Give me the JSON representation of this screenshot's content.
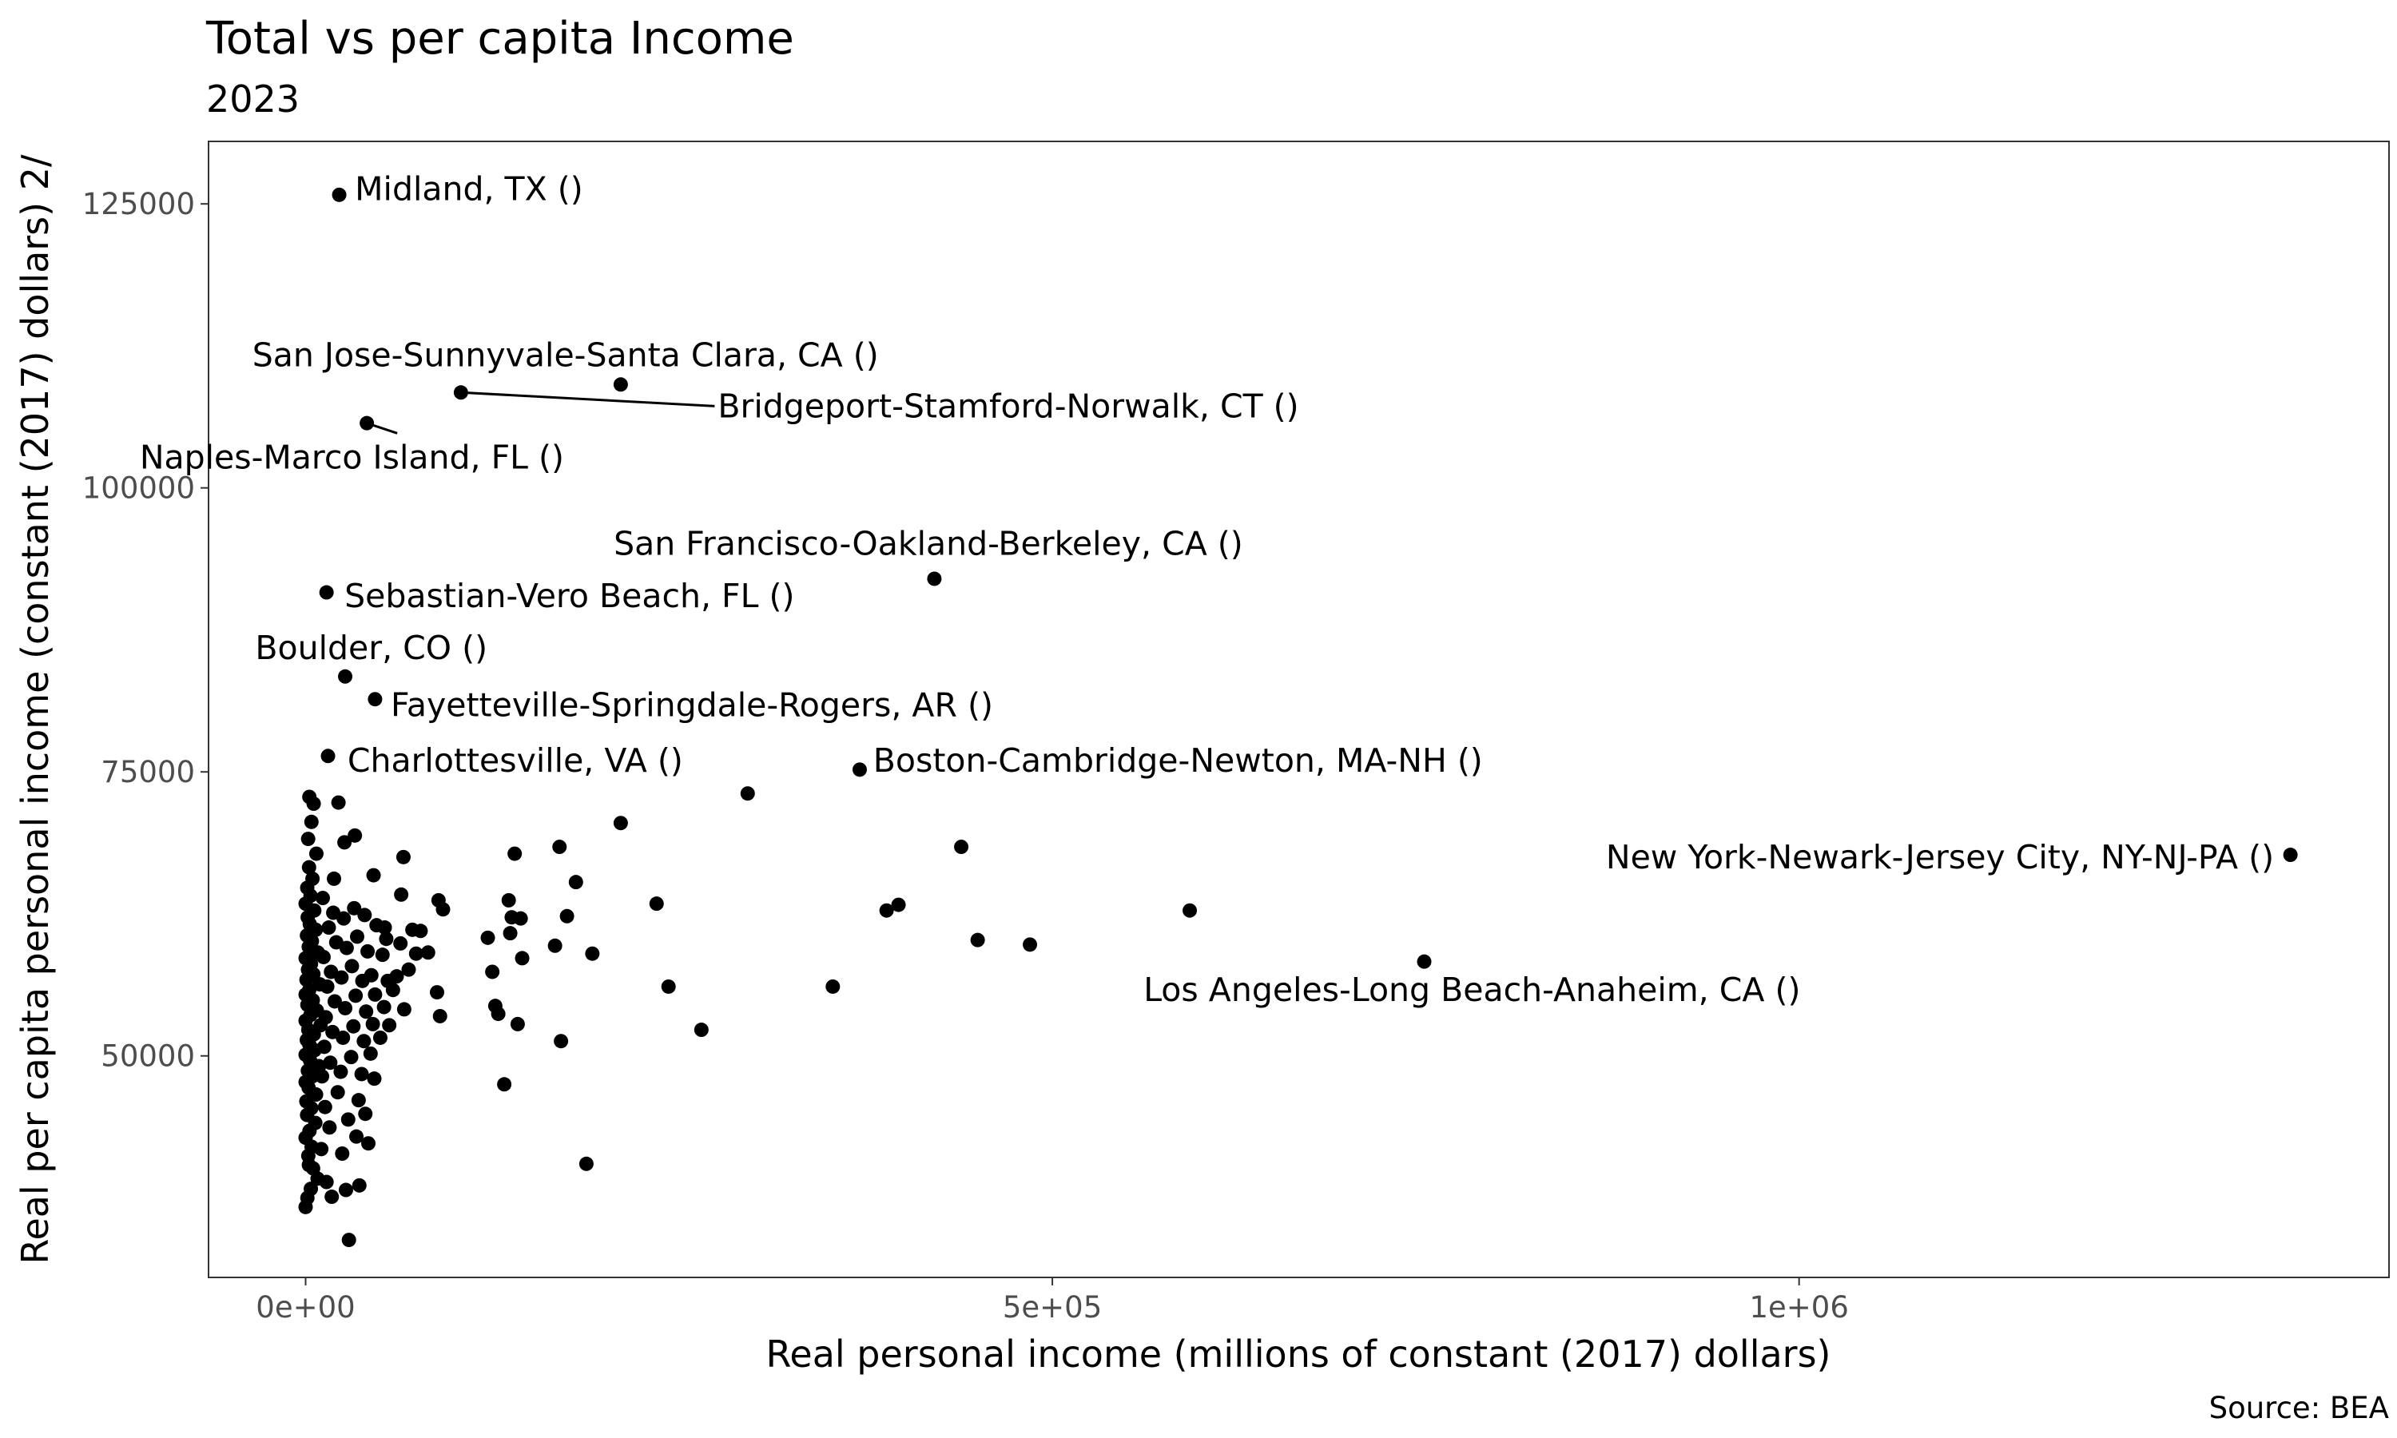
{
  "chart_data": {
    "type": "scatter",
    "title": "Total vs per capita Income",
    "subtitle": "2023",
    "xlabel": "Real personal income (millions of constant (2017) dollars)",
    "ylabel": "Real per capita personal income (constant (2017) dollars) 2/",
    "caption": "Source: BEA",
    "xlim": [
      -65000,
      1395000
    ],
    "ylim": [
      30500,
      130500
    ],
    "x_ticks": [
      {
        "value": 0,
        "label": "0e+00"
      },
      {
        "value": 500000,
        "label": "5e+05"
      },
      {
        "value": 1000000,
        "label": "1e+06"
      }
    ],
    "y_ticks": [
      {
        "value": 50000,
        "label": "50000"
      },
      {
        "value": 75000,
        "label": "75000"
      },
      {
        "value": 100000,
        "label": "100000"
      },
      {
        "value": 125000,
        "label": "125000"
      }
    ],
    "grid": false,
    "labeled_points": [
      {
        "label": "Midland, TX ()",
        "x": 22500,
        "y": 125800,
        "label_x": 33000,
        "label_y": 126300,
        "anchor": "start"
      },
      {
        "label": "San Jose-Sunnyvale-Santa Clara, CA ()",
        "x": 211000,
        "y": 109100,
        "label_x": 174000,
        "label_y": 111700,
        "anchor": "middle"
      },
      {
        "label": "Bridgeport-Stamford-Norwalk, CT ()",
        "x": 104000,
        "y": 108400,
        "label_x": 276000,
        "label_y": 107200,
        "anchor": "start",
        "leader": true
      },
      {
        "label": "Naples-Marco Island, FL ()",
        "x": 41000,
        "y": 105700,
        "label_x": 31000,
        "label_y": 102700,
        "anchor": "middle",
        "leader": true
      },
      {
        "label": "San Francisco-Oakland-Berkeley, CA ()",
        "x": 421000,
        "y": 92000,
        "label_x": 417000,
        "label_y": 95100,
        "anchor": "middle"
      },
      {
        "label": "Sebastian-Vero Beach, FL ()",
        "x": 14000,
        "y": 90800,
        "label_x": 26000,
        "label_y": 90500,
        "anchor": "start"
      },
      {
        "label": "Boulder, CO ()",
        "x": 26500,
        "y": 83400,
        "label_x": 44000,
        "label_y": 85900,
        "anchor": "middle"
      },
      {
        "label": "Fayetteville-Springdale-Rogers, AR ()",
        "x": 46500,
        "y": 81400,
        "label_x": 57000,
        "label_y": 80900,
        "anchor": "start"
      },
      {
        "label": "Charlottesville, VA ()",
        "x": 15000,
        "y": 76400,
        "label_x": 28000,
        "label_y": 76000,
        "anchor": "start"
      },
      {
        "label": "Boston-Cambridge-Newton, MA-NH ()",
        "x": 371000,
        "y": 75200,
        "label_x": 380000,
        "label_y": 76000,
        "anchor": "start"
      },
      {
        "label": "New York-Newark-Jersey City, NY-NJ-PA ()",
        "x": 1329000,
        "y": 67700,
        "label_x": 1318000,
        "label_y": 67500,
        "anchor": "end"
      },
      {
        "label": "Los Angeles-Long Beach-Anaheim, CA ()",
        "x": 749000,
        "y": 58300,
        "label_x": 781000,
        "label_y": 55800,
        "anchor": "middle"
      }
    ],
    "points": [
      {
        "x": 0,
        "y": 36700
      },
      {
        "x": 1200,
        "y": 37500
      },
      {
        "x": 3500,
        "y": 38300
      },
      {
        "x": 5000,
        "y": 40100
      },
      {
        "x": 2200,
        "y": 40400
      },
      {
        "x": 8000,
        "y": 39200
      },
      {
        "x": 1800,
        "y": 41200
      },
      {
        "x": 4000,
        "y": 42000
      },
      {
        "x": 0,
        "y": 42800
      },
      {
        "x": 2600,
        "y": 43400
      },
      {
        "x": 6500,
        "y": 44100
      },
      {
        "x": 1000,
        "y": 44800
      },
      {
        "x": 3800,
        "y": 45400
      },
      {
        "x": 500,
        "y": 46000
      },
      {
        "x": 7000,
        "y": 46600
      },
      {
        "x": 2000,
        "y": 47200
      },
      {
        "x": 0,
        "y": 47700
      },
      {
        "x": 4500,
        "y": 48200
      },
      {
        "x": 1500,
        "y": 48700
      },
      {
        "x": 9000,
        "y": 49100
      },
      {
        "x": 3000,
        "y": 49600
      },
      {
        "x": 0,
        "y": 50100
      },
      {
        "x": 6000,
        "y": 50500
      },
      {
        "x": 2500,
        "y": 51000
      },
      {
        "x": 800,
        "y": 51400
      },
      {
        "x": 5500,
        "y": 51900
      },
      {
        "x": 1800,
        "y": 52300
      },
      {
        "x": 10000,
        "y": 52700
      },
      {
        "x": 0,
        "y": 53100
      },
      {
        "x": 3200,
        "y": 53600
      },
      {
        "x": 7500,
        "y": 54000
      },
      {
        "x": 1200,
        "y": 54500
      },
      {
        "x": 4800,
        "y": 54900
      },
      {
        "x": 0,
        "y": 55400
      },
      {
        "x": 2400,
        "y": 55800
      },
      {
        "x": 9500,
        "y": 56300
      },
      {
        "x": 600,
        "y": 56700
      },
      {
        "x": 5200,
        "y": 57200
      },
      {
        "x": 1600,
        "y": 57600
      },
      {
        "x": 3600,
        "y": 58100
      },
      {
        "x": 0,
        "y": 58600
      },
      {
        "x": 8200,
        "y": 59100
      },
      {
        "x": 2100,
        "y": 59600
      },
      {
        "x": 4200,
        "y": 60100
      },
      {
        "x": 900,
        "y": 60600
      },
      {
        "x": 6800,
        "y": 61100
      },
      {
        "x": 2800,
        "y": 61600
      },
      {
        "x": 1400,
        "y": 62200
      },
      {
        "x": 5800,
        "y": 62800
      },
      {
        "x": 0,
        "y": 63400
      },
      {
        "x": 3300,
        "y": 64100
      },
      {
        "x": 1100,
        "y": 64800
      },
      {
        "x": 4600,
        "y": 65600
      },
      {
        "x": 2300,
        "y": 66600
      },
      {
        "x": 7200,
        "y": 67800
      },
      {
        "x": 1700,
        "y": 69100
      },
      {
        "x": 3900,
        "y": 70600
      },
      {
        "x": 5400,
        "y": 72200
      },
      {
        "x": 2500,
        "y": 72800
      },
      {
        "x": 11000,
        "y": 48200
      },
      {
        "x": 12500,
        "y": 50800
      },
      {
        "x": 13500,
        "y": 53400
      },
      {
        "x": 14500,
        "y": 56100
      },
      {
        "x": 12000,
        "y": 58700
      },
      {
        "x": 15500,
        "y": 61300
      },
      {
        "x": 11500,
        "y": 63900
      },
      {
        "x": 13000,
        "y": 45500
      },
      {
        "x": 10500,
        "y": 41800
      },
      {
        "x": 14000,
        "y": 38900
      },
      {
        "x": 16500,
        "y": 49400
      },
      {
        "x": 18000,
        "y": 52100
      },
      {
        "x": 19500,
        "y": 54800
      },
      {
        "x": 17000,
        "y": 57400
      },
      {
        "x": 20500,
        "y": 60000
      },
      {
        "x": 18500,
        "y": 62600
      },
      {
        "x": 21500,
        "y": 46800
      },
      {
        "x": 16000,
        "y": 43700
      },
      {
        "x": 19000,
        "y": 65600
      },
      {
        "x": 22000,
        "y": 72300
      },
      {
        "x": 17500,
        "y": 37600
      },
      {
        "x": 23500,
        "y": 48600
      },
      {
        "x": 25000,
        "y": 51600
      },
      {
        "x": 26500,
        "y": 54200
      },
      {
        "x": 24000,
        "y": 56900
      },
      {
        "x": 27500,
        "y": 59500
      },
      {
        "x": 25500,
        "y": 62100
      },
      {
        "x": 28500,
        "y": 44400
      },
      {
        "x": 24500,
        "y": 41400
      },
      {
        "x": 26000,
        "y": 68800
      },
      {
        "x": 29000,
        "y": 33800
      },
      {
        "x": 27000,
        "y": 38200
      },
      {
        "x": 30500,
        "y": 49900
      },
      {
        "x": 32000,
        "y": 52600
      },
      {
        "x": 33500,
        "y": 55300
      },
      {
        "x": 31000,
        "y": 57900
      },
      {
        "x": 34500,
        "y": 60500
      },
      {
        "x": 32500,
        "y": 63000
      },
      {
        "x": 35500,
        "y": 46100
      },
      {
        "x": 33000,
        "y": 69400
      },
      {
        "x": 34000,
        "y": 42900
      },
      {
        "x": 36000,
        "y": 38600
      },
      {
        "x": 37500,
        "y": 48400
      },
      {
        "x": 39000,
        "y": 51300
      },
      {
        "x": 40500,
        "y": 53900
      },
      {
        "x": 38000,
        "y": 56600
      },
      {
        "x": 41500,
        "y": 59200
      },
      {
        "x": 39500,
        "y": 62400
      },
      {
        "x": 42000,
        "y": 42300
      },
      {
        "x": 40000,
        "y": 44900
      },
      {
        "x": 43500,
        "y": 50200
      },
      {
        "x": 45000,
        "y": 52800
      },
      {
        "x": 46500,
        "y": 55400
      },
      {
        "x": 44000,
        "y": 57100
      },
      {
        "x": 47500,
        "y": 61500
      },
      {
        "x": 45500,
        "y": 65900
      },
      {
        "x": 46000,
        "y": 48000
      },
      {
        "x": 50000,
        "y": 51600
      },
      {
        "x": 52500,
        "y": 54300
      },
      {
        "x": 55000,
        "y": 56600
      },
      {
        "x": 51500,
        "y": 58900
      },
      {
        "x": 54000,
        "y": 60300
      },
      {
        "x": 53000,
        "y": 61300
      },
      {
        "x": 56000,
        "y": 52700
      },
      {
        "x": 58500,
        "y": 55800
      },
      {
        "x": 61000,
        "y": 57000
      },
      {
        "x": 63500,
        "y": 59900
      },
      {
        "x": 66000,
        "y": 54100
      },
      {
        "x": 64000,
        "y": 64200
      },
      {
        "x": 65500,
        "y": 67500
      },
      {
        "x": 69000,
        "y": 57600
      },
      {
        "x": 71500,
        "y": 61100
      },
      {
        "x": 74000,
        "y": 59000
      },
      {
        "x": 77000,
        "y": 61000
      },
      {
        "x": 82000,
        "y": 59100
      },
      {
        "x": 88000,
        "y": 55600
      },
      {
        "x": 90000,
        "y": 53500
      },
      {
        "x": 89000,
        "y": 63700
      },
      {
        "x": 92000,
        "y": 62900
      },
      {
        "x": 122000,
        "y": 60400
      },
      {
        "x": 125000,
        "y": 57400
      },
      {
        "x": 127000,
        "y": 54400
      },
      {
        "x": 129000,
        "y": 53700
      },
      {
        "x": 133000,
        "y": 47500
      },
      {
        "x": 136000,
        "y": 63700
      },
      {
        "x": 137000,
        "y": 60800
      },
      {
        "x": 138000,
        "y": 62200
      },
      {
        "x": 140000,
        "y": 67800
      },
      {
        "x": 142000,
        "y": 52800
      },
      {
        "x": 145000,
        "y": 58600
      },
      {
        "x": 144000,
        "y": 62100
      },
      {
        "x": 167000,
        "y": 59700
      },
      {
        "x": 170000,
        "y": 68400
      },
      {
        "x": 171000,
        "y": 51300
      },
      {
        "x": 175000,
        "y": 62300
      },
      {
        "x": 181000,
        "y": 65300
      },
      {
        "x": 188000,
        "y": 40500
      },
      {
        "x": 192000,
        "y": 59000
      },
      {
        "x": 211000,
        "y": 70500
      },
      {
        "x": 235000,
        "y": 63400
      },
      {
        "x": 243000,
        "y": 56100
      },
      {
        "x": 265000,
        "y": 52300
      },
      {
        "x": 296000,
        "y": 73100
      },
      {
        "x": 353000,
        "y": 56100
      },
      {
        "x": 389000,
        "y": 62800
      },
      {
        "x": 397000,
        "y": 63300
      },
      {
        "x": 439000,
        "y": 68400
      },
      {
        "x": 450000,
        "y": 60200
      },
      {
        "x": 485000,
        "y": 59800
      },
      {
        "x": 592000,
        "y": 62800
      }
    ]
  }
}
